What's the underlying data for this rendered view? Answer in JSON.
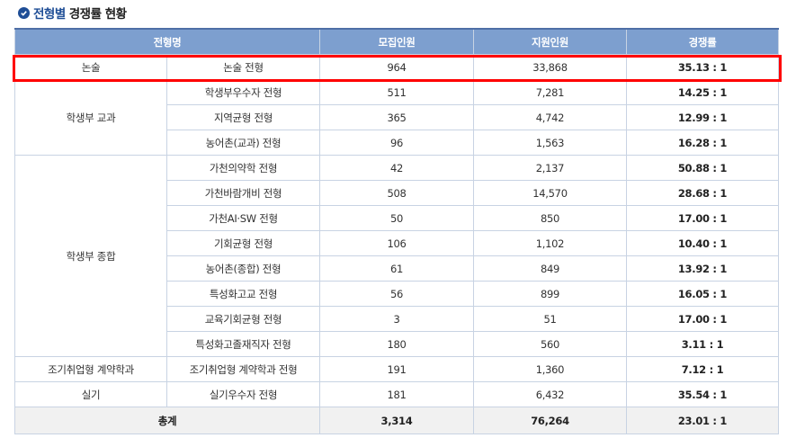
{
  "title": {
    "accent": "전형별",
    "rest": "경쟁률 현황",
    "icon": "check-circle-icon"
  },
  "headers": {
    "name": "전형명",
    "quota": "모집인원",
    "applicants": "지원인원",
    "rate": "경쟁률"
  },
  "rows": [
    {
      "group": "논술",
      "name": "논술 전형",
      "quota": "964",
      "applicants": "33,868",
      "rate": "35.13 : 1"
    },
    {
      "group": "학생부 교과",
      "name": "학생부우수자 전형",
      "quota": "511",
      "applicants": "7,281",
      "rate": "14.25 : 1"
    },
    {
      "name": "지역균형 전형",
      "quota": "365",
      "applicants": "4,742",
      "rate": "12.99 : 1"
    },
    {
      "name": "농어촌(교과) 전형",
      "quota": "96",
      "applicants": "1,563",
      "rate": "16.28 : 1"
    },
    {
      "group": "학생부 종합",
      "name": "가천의약학 전형",
      "quota": "42",
      "applicants": "2,137",
      "rate": "50.88 : 1"
    },
    {
      "name": "가천바람개비 전형",
      "quota": "508",
      "applicants": "14,570",
      "rate": "28.68 : 1"
    },
    {
      "name": "가천AI·SW 전형",
      "quota": "50",
      "applicants": "850",
      "rate": "17.00 : 1"
    },
    {
      "name": "기회균형 전형",
      "quota": "106",
      "applicants": "1,102",
      "rate": "10.40 : 1"
    },
    {
      "name": "농어촌(종합) 전형",
      "quota": "61",
      "applicants": "849",
      "rate": "13.92 : 1"
    },
    {
      "name": "특성화고교 전형",
      "quota": "56",
      "applicants": "899",
      "rate": "16.05 : 1"
    },
    {
      "name": "교육기회균형 전형",
      "quota": "3",
      "applicants": "51",
      "rate": "17.00 : 1"
    },
    {
      "name": "특성화고졸재직자 전형",
      "quota": "180",
      "applicants": "560",
      "rate": "3.11 : 1"
    },
    {
      "group": "조기취업형 계약학과",
      "name": "조기취업형 계약학과 전형",
      "quota": "191",
      "applicants": "1,360",
      "rate": "7.12 : 1"
    },
    {
      "group": "실기",
      "name": "실기우수자 전형",
      "quota": "181",
      "applicants": "6,432",
      "rate": "35.54 : 1"
    }
  ],
  "total": {
    "label": "총계",
    "quota": "3,314",
    "applicants": "76,264",
    "rate": "23.01 : 1"
  },
  "colors": {
    "header": "#7d9fcf",
    "accent": "#1f4e96",
    "highlight": "#ff0000"
  }
}
